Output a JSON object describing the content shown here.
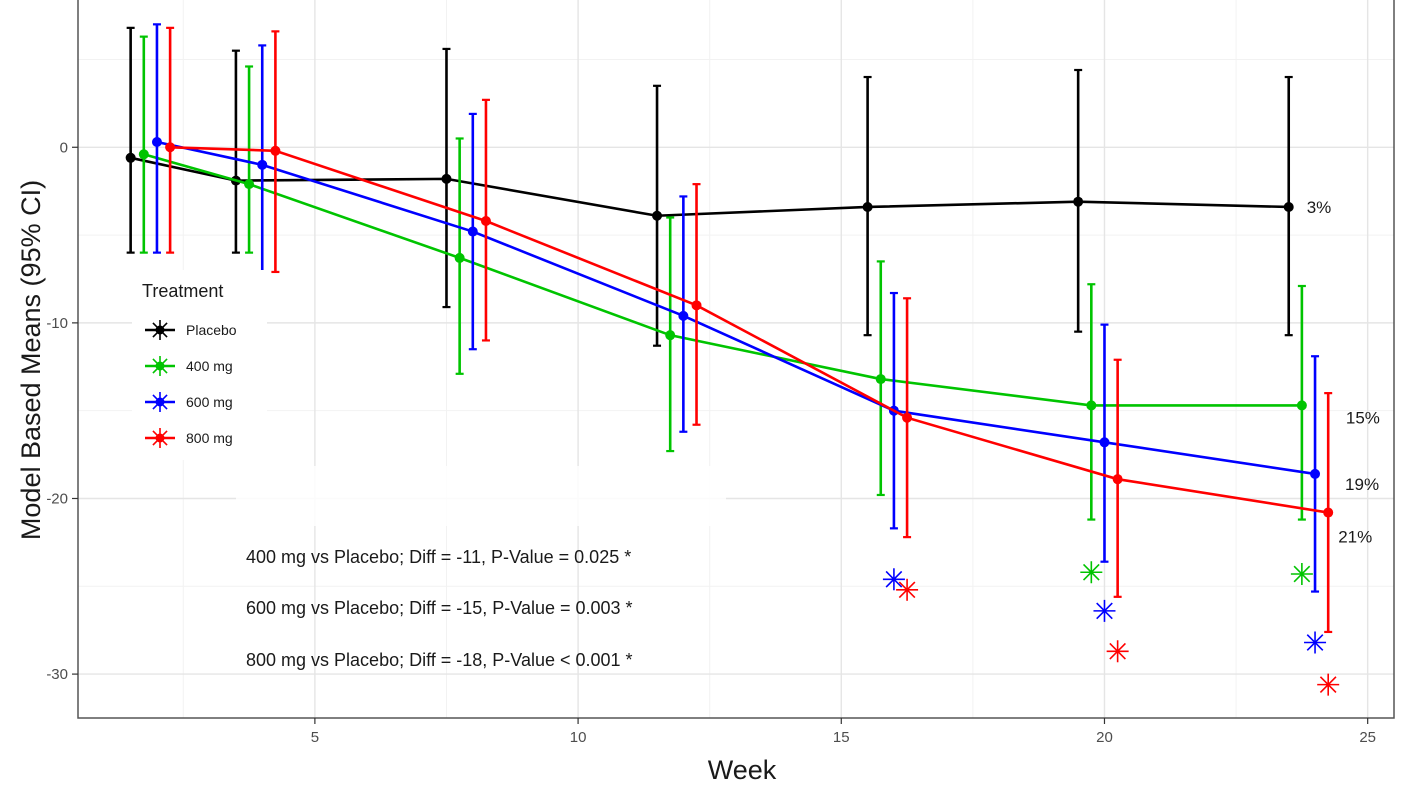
{
  "chart_data": {
    "type": "line",
    "title": "",
    "xlabel": "Week",
    "ylabel": "Model Based Means (95% CI)",
    "xlim": [
      0.5,
      25.5
    ],
    "ylim": [
      -32.5,
      8.5
    ],
    "x_ticks": [
      5,
      10,
      15,
      20,
      25
    ],
    "y_ticks": [
      0,
      -10,
      -20,
      -30
    ],
    "grid": true,
    "legend": {
      "title": "Treatment",
      "position": "left",
      "entries": [
        "Placebo",
        "400 mg",
        "600 mg",
        "800 mg"
      ]
    },
    "series": [
      {
        "name": "Placebo",
        "color": "#000000",
        "x": [
          1.5,
          3.5,
          7.5,
          11.5,
          15.5,
          19.5,
          23.5
        ],
        "y": [
          -0.6,
          -1.9,
          -1.8,
          -3.9,
          -3.4,
          -3.1,
          -3.4
        ],
        "lower": [
          -6.0,
          -6.0,
          -9.1,
          -11.3,
          -10.7,
          -10.5,
          -10.7
        ],
        "upper": [
          6.8,
          5.5,
          5.6,
          3.5,
          4.0,
          4.4,
          4.0
        ],
        "end_label": "3%"
      },
      {
        "name": "400 mg",
        "color": "#00c400",
        "x": [
          1.75,
          3.75,
          7.75,
          11.75,
          15.75,
          19.75,
          23.75
        ],
        "y": [
          -0.4,
          -2.1,
          -6.3,
          -10.7,
          -13.2,
          -14.7,
          -14.7
        ],
        "lower": [
          -6.0,
          -6.0,
          -12.9,
          -17.3,
          -19.8,
          -21.2,
          -21.2
        ],
        "upper": [
          6.3,
          4.6,
          0.5,
          -4.0,
          -6.5,
          -7.8,
          -7.9
        ],
        "end_label": "15%"
      },
      {
        "name": "600 mg",
        "color": "#0000ff",
        "x": [
          2.0,
          4.0,
          8.0,
          12.0,
          16.0,
          20.0,
          24.0
        ],
        "y": [
          0.3,
          -1.0,
          -4.8,
          -9.6,
          -15.0,
          -16.8,
          -18.6
        ],
        "lower": [
          -6.0,
          -7.6,
          -11.5,
          -16.2,
          -21.7,
          -23.6,
          -25.3
        ],
        "upper": [
          7.0,
          5.8,
          1.9,
          -2.8,
          -8.3,
          -10.1,
          -11.9
        ],
        "end_label": "19%"
      },
      {
        "name": "800 mg",
        "color": "#ff0000",
        "x": [
          2.25,
          4.25,
          8.25,
          12.25,
          16.25,
          20.25,
          24.25
        ],
        "y": [
          0.0,
          -0.2,
          -4.2,
          -9.0,
          -15.4,
          -18.9,
          -20.8
        ],
        "lower": [
          -6.0,
          -7.1,
          -11.0,
          -15.8,
          -22.2,
          -25.6,
          -27.6
        ],
        "upper": [
          6.8,
          6.6,
          2.7,
          -2.1,
          -8.6,
          -12.1,
          -14.0
        ],
        "end_label": "21%"
      }
    ],
    "significance_markers": [
      {
        "series": "600 mg",
        "x": 16.0,
        "y": -24.6
      },
      {
        "series": "800 mg",
        "x": 16.25,
        "y": -25.2
      },
      {
        "series": "400 mg",
        "x": 19.75,
        "y": -24.2
      },
      {
        "series": "600 mg",
        "x": 20.0,
        "y": -26.4
      },
      {
        "series": "800 mg",
        "x": 20.25,
        "y": -28.7
      },
      {
        "series": "400 mg",
        "x": 23.75,
        "y": -24.3
      },
      {
        "series": "600 mg",
        "x": 24.0,
        "y": -28.2
      },
      {
        "series": "800 mg",
        "x": 24.25,
        "y": -30.6
      }
    ],
    "annotations": [
      "400 mg vs Placebo; Diff = -11, P-Value = 0.025 *",
      "600 mg vs Placebo; Diff = -15, P-Value = 0.003 *",
      "800 mg vs Placebo; Diff = -18, P-Value < 0.001 *"
    ]
  }
}
